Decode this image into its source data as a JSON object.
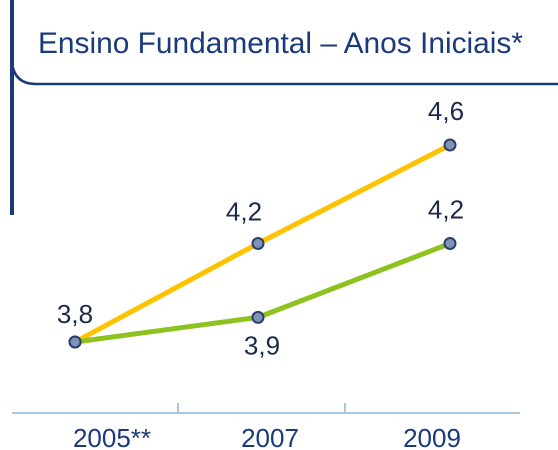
{
  "chart_data": {
    "type": "line",
    "title": "Ensino Fundamental – Anos Iniciais*",
    "categories": [
      "2005**",
      "2007",
      "2009"
    ],
    "series": [
      {
        "color": "#fdc300",
        "values": [
          3.8,
          4.2,
          4.6
        ],
        "value_labels": [
          "3,8",
          "4,2",
          "4,6"
        ]
      },
      {
        "color": "#8dc21f",
        "values": [
          3.8,
          3.9,
          4.2
        ],
        "value_labels": [
          null,
          "3,9",
          "4,2"
        ]
      }
    ]
  }
}
